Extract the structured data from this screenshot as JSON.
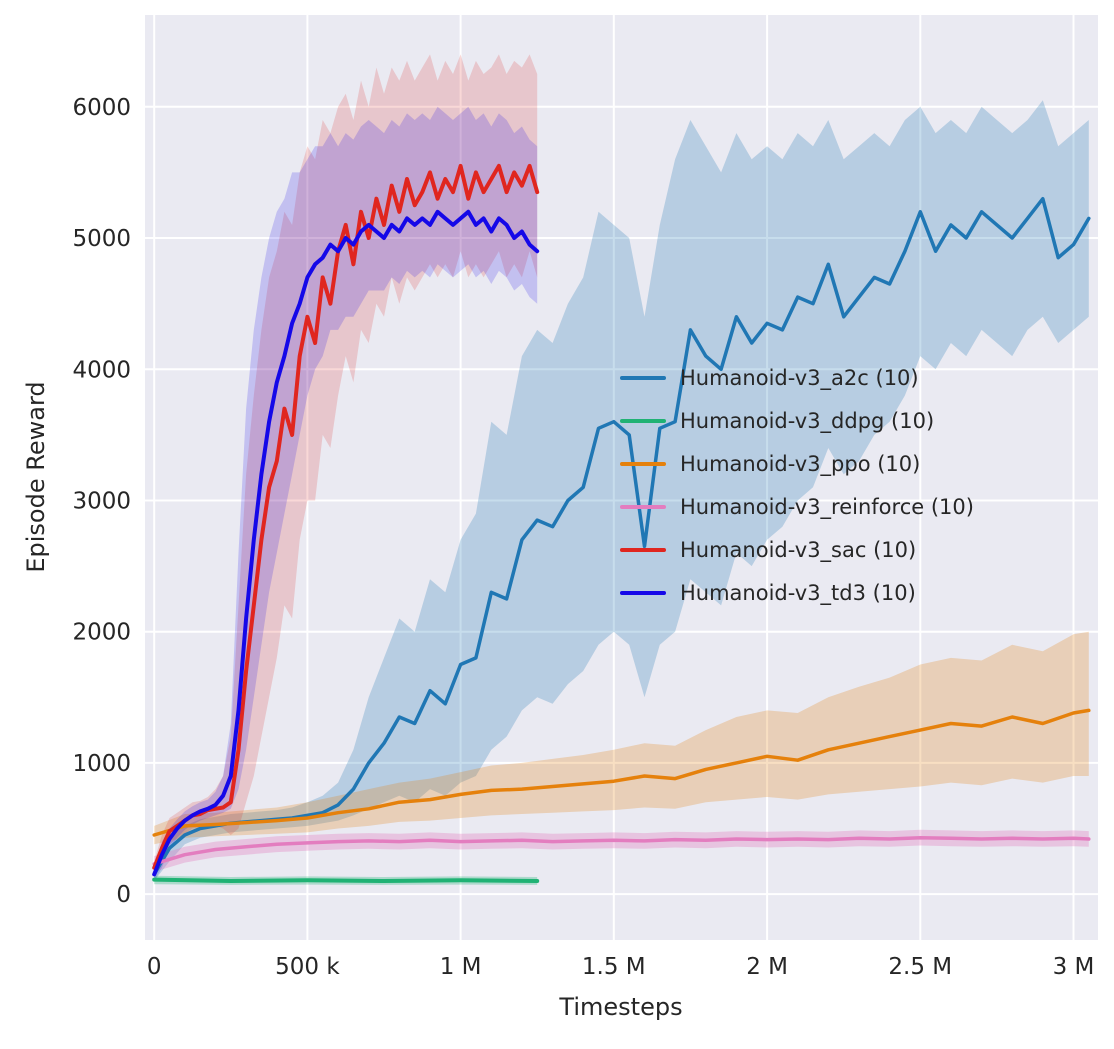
{
  "chart_data": {
    "type": "line",
    "title": "",
    "xlabel": "Timesteps",
    "ylabel": "Episode Reward",
    "x_unit_note": "x values below are in thousands of timesteps (k)",
    "xlim": [
      -30,
      3080
    ],
    "ylim": [
      -350,
      6700
    ],
    "grid": true,
    "legend_position": "center-right",
    "style": {
      "plot_bg": "#eaeaf2",
      "grid_color": "#ffffff",
      "text_color": "#262626"
    },
    "x_ticks": {
      "values": [
        0,
        500,
        1000,
        1500,
        2000,
        2500,
        3000
      ],
      "labels": [
        "0",
        "500 k",
        "1 M",
        "1.5 M",
        "2 M",
        "2.5 M",
        "3 M"
      ]
    },
    "y_ticks": {
      "values": [
        0,
        1000,
        2000,
        3000,
        4000,
        5000,
        6000
      ],
      "labels": [
        "0",
        "1000",
        "2000",
        "3000",
        "4000",
        "5000",
        "6000"
      ]
    },
    "series": [
      {
        "name": "a2c",
        "label": "Humanoid-v3_a2c (10)",
        "color": "#2077b4",
        "band_opacity": 0.25,
        "line_width": 3.5,
        "x": [
          0,
          50,
          100,
          150,
          200,
          250,
          300,
          350,
          400,
          450,
          500,
          550,
          600,
          650,
          700,
          750,
          800,
          850,
          900,
          950,
          1000,
          1050,
          1100,
          1150,
          1200,
          1250,
          1300,
          1350,
          1400,
          1450,
          1500,
          1550,
          1600,
          1650,
          1700,
          1750,
          1800,
          1850,
          1900,
          1950,
          2000,
          2050,
          2100,
          2150,
          2200,
          2250,
          2300,
          2350,
          2400,
          2450,
          2500,
          2550,
          2600,
          2650,
          2700,
          2750,
          2800,
          2850,
          2900,
          2950,
          3000,
          3050
        ],
        "mean": [
          150,
          350,
          450,
          500,
          520,
          540,
          550,
          560,
          570,
          580,
          600,
          620,
          680,
          800,
          1000,
          1150,
          1350,
          1300,
          1550,
          1450,
          1750,
          1800,
          2300,
          2250,
          2700,
          2850,
          2800,
          3000,
          3100,
          3550,
          3600,
          3500,
          2650,
          3550,
          3600,
          4300,
          4100,
          4000,
          4400,
          4200,
          4350,
          4300,
          4550,
          4500,
          4800,
          4400,
          4550,
          4700,
          4650,
          4900,
          5200,
          4900,
          5100,
          5000,
          5200,
          5100,
          5000,
          5150,
          5300,
          4850,
          4950,
          5150
        ],
        "lo": [
          100,
          250,
          380,
          430,
          450,
          470,
          480,
          490,
          500,
          510,
          520,
          540,
          560,
          600,
          650,
          700,
          750,
          700,
          800,
          750,
          850,
          900,
          1100,
          1200,
          1400,
          1500,
          1450,
          1600,
          1700,
          1900,
          2000,
          1900,
          1500,
          1900,
          2000,
          2400,
          2300,
          2200,
          2600,
          2500,
          2700,
          2800,
          3000,
          3100,
          3400,
          3200,
          3300,
          3500,
          3600,
          3800,
          4100,
          4000,
          4200,
          4100,
          4300,
          4200,
          4100,
          4300,
          4400,
          4200,
          4300,
          4400
        ],
        "hi": [
          200,
          450,
          520,
          570,
          590,
          610,
          620,
          630,
          640,
          660,
          700,
          750,
          850,
          1100,
          1500,
          1800,
          2100,
          2000,
          2400,
          2300,
          2700,
          2900,
          3600,
          3500,
          4100,
          4300,
          4200,
          4500,
          4700,
          5200,
          5100,
          5000,
          4400,
          5100,
          5600,
          5900,
          5700,
          5500,
          5800,
          5600,
          5700,
          5600,
          5800,
          5700,
          5900,
          5600,
          5700,
          5800,
          5700,
          5900,
          6000,
          5800,
          5900,
          5800,
          6000,
          5900,
          5800,
          5900,
          6050,
          5700,
          5800,
          5900
        ]
      },
      {
        "name": "ddpg",
        "label": "Humanoid-v3_ddpg (10)",
        "color": "#20b274",
        "band_opacity": 0.3,
        "line_width": 4,
        "x": [
          0,
          250,
          500,
          750,
          1000,
          1250
        ],
        "mean": [
          110,
          100,
          105,
          100,
          105,
          100
        ],
        "lo": [
          75,
          70,
          72,
          70,
          72,
          70
        ],
        "hi": [
          140,
          130,
          135,
          130,
          135,
          130
        ]
      },
      {
        "name": "ppo",
        "label": "Humanoid-v3_ppo (10)",
        "color": "#e5810c",
        "band_opacity": 0.25,
        "line_width": 3.5,
        "x": [
          0,
          100,
          200,
          300,
          400,
          500,
          600,
          700,
          800,
          900,
          1000,
          1100,
          1200,
          1300,
          1400,
          1500,
          1600,
          1700,
          1800,
          1900,
          2000,
          2100,
          2200,
          2300,
          2400,
          2500,
          2600,
          2700,
          2800,
          2900,
          3000,
          3050
        ],
        "mean": [
          450,
          520,
          530,
          545,
          560,
          580,
          620,
          650,
          700,
          720,
          760,
          790,
          800,
          820,
          840,
          860,
          900,
          880,
          950,
          1000,
          1050,
          1020,
          1100,
          1150,
          1200,
          1250,
          1300,
          1280,
          1350,
          1300,
          1380,
          1400
        ],
        "lo": [
          380,
          430,
          440,
          450,
          460,
          470,
          500,
          520,
          550,
          560,
          580,
          600,
          610,
          620,
          630,
          640,
          660,
          650,
          700,
          720,
          740,
          720,
          760,
          780,
          800,
          820,
          850,
          830,
          880,
          850,
          900,
          900
        ],
        "hi": [
          520,
          610,
          620,
          640,
          660,
          700,
          750,
          800,
          850,
          880,
          930,
          980,
          1000,
          1030,
          1060,
          1100,
          1150,
          1130,
          1250,
          1350,
          1400,
          1380,
          1500,
          1580,
          1650,
          1750,
          1800,
          1780,
          1900,
          1850,
          1980,
          2000
        ]
      },
      {
        "name": "reinforce",
        "label": "Humanoid-v3_reinforce (10)",
        "color": "#e37dbf",
        "band_opacity": 0.35,
        "line_width": 3.5,
        "x": [
          0,
          100,
          200,
          300,
          400,
          500,
          600,
          700,
          800,
          900,
          1000,
          1100,
          1200,
          1300,
          1400,
          1500,
          1600,
          1700,
          1800,
          1900,
          2000,
          2100,
          2200,
          2300,
          2400,
          2500,
          2600,
          2700,
          2800,
          2900,
          3000,
          3050
        ],
        "mean": [
          230,
          300,
          340,
          360,
          380,
          390,
          400,
          405,
          400,
          410,
          400,
          405,
          410,
          400,
          405,
          410,
          405,
          415,
          410,
          420,
          415,
          420,
          415,
          425,
          420,
          430,
          425,
          420,
          425,
          420,
          425,
          420
        ],
        "lo": [
          170,
          240,
          280,
          300,
          320,
          330,
          340,
          345,
          340,
          350,
          340,
          345,
          350,
          340,
          345,
          350,
          345,
          355,
          350,
          360,
          355,
          360,
          355,
          365,
          360,
          370,
          365,
          360,
          365,
          360,
          365,
          360
        ],
        "hi": [
          290,
          360,
          400,
          420,
          440,
          450,
          460,
          465,
          460,
          470,
          460,
          465,
          470,
          460,
          465,
          470,
          465,
          475,
          470,
          480,
          475,
          480,
          475,
          485,
          480,
          490,
          485,
          480,
          485,
          480,
          485,
          480
        ]
      },
      {
        "name": "sac",
        "label": "Humanoid-v3_sac (10)",
        "color": "#e0261f",
        "band_opacity": 0.18,
        "line_width": 4,
        "x": [
          0,
          25,
          50,
          75,
          100,
          125,
          150,
          175,
          200,
          225,
          250,
          275,
          300,
          325,
          350,
          375,
          400,
          425,
          450,
          475,
          500,
          525,
          550,
          575,
          600,
          625,
          650,
          675,
          700,
          725,
          750,
          775,
          800,
          825,
          850,
          875,
          900,
          925,
          950,
          975,
          1000,
          1025,
          1050,
          1075,
          1100,
          1125,
          1150,
          1175,
          1200,
          1225,
          1250
        ],
        "mean": [
          200,
          350,
          480,
          520,
          560,
          600,
          610,
          640,
          650,
          660,
          700,
          1100,
          1700,
          2200,
          2700,
          3100,
          3300,
          3700,
          3500,
          4100,
          4400,
          4200,
          4700,
          4500,
          4900,
          5100,
          4800,
          5200,
          5000,
          5300,
          5100,
          5400,
          5200,
          5450,
          5250,
          5350,
          5500,
          5300,
          5450,
          5350,
          5550,
          5300,
          5500,
          5350,
          5450,
          5550,
          5350,
          5500,
          5400,
          5550,
          5350
        ],
        "lo": [
          150,
          250,
          380,
          420,
          460,
          500,
          510,
          540,
          520,
          500,
          450,
          500,
          700,
          900,
          1200,
          1500,
          1800,
          2200,
          2100,
          2700,
          3000,
          3000,
          3500,
          3400,
          3800,
          4100,
          3900,
          4300,
          4200,
          4500,
          4400,
          4700,
          4500,
          4700,
          4600,
          4700,
          4800,
          4700,
          4800,
          4700,
          4900,
          4700,
          4800,
          4700,
          4800,
          4900,
          4700,
          4800,
          4700,
          4900,
          4700
        ],
        "hi": [
          250,
          450,
          580,
          620,
          660,
          700,
          710,
          740,
          800,
          900,
          1200,
          2200,
          3200,
          3800,
          4300,
          4700,
          4900,
          5200,
          5100,
          5500,
          5700,
          5600,
          5900,
          5800,
          6000,
          6100,
          5900,
          6200,
          6000,
          6300,
          6100,
          6300,
          6200,
          6350,
          6200,
          6300,
          6400,
          6200,
          6350,
          6250,
          6400,
          6200,
          6350,
          6250,
          6300,
          6400,
          6250,
          6350,
          6300,
          6400,
          6250
        ]
      },
      {
        "name": "td3",
        "label": "Humanoid-v3_td3 (10)",
        "color": "#1508e8",
        "band_opacity": 0.18,
        "line_width": 4,
        "x": [
          0,
          25,
          50,
          75,
          100,
          125,
          150,
          175,
          200,
          225,
          250,
          275,
          300,
          325,
          350,
          375,
          400,
          425,
          450,
          475,
          500,
          525,
          550,
          575,
          600,
          625,
          650,
          675,
          700,
          725,
          750,
          775,
          800,
          825,
          850,
          875,
          900,
          925,
          950,
          975,
          1000,
          1025,
          1050,
          1075,
          1100,
          1125,
          1150,
          1175,
          1200,
          1225,
          1250
        ],
        "mean": [
          150,
          300,
          420,
          500,
          560,
          600,
          630,
          650,
          680,
          750,
          900,
          1400,
          2100,
          2700,
          3200,
          3600,
          3900,
          4100,
          4350,
          4500,
          4700,
          4800,
          4850,
          4950,
          4900,
          5000,
          4950,
          5050,
          5100,
          5050,
          5000,
          5100,
          5050,
          5150,
          5100,
          5150,
          5100,
          5200,
          5150,
          5100,
          5150,
          5200,
          5100,
          5150,
          5050,
          5150,
          5100,
          5000,
          5050,
          4950,
          4900
        ],
        "lo": [
          100,
          200,
          350,
          430,
          490,
          530,
          560,
          580,
          600,
          620,
          650,
          800,
          1100,
          1500,
          1900,
          2300,
          2600,
          2900,
          3200,
          3500,
          3800,
          4000,
          4100,
          4300,
          4300,
          4400,
          4400,
          4500,
          4600,
          4600,
          4600,
          4700,
          4650,
          4750,
          4700,
          4750,
          4700,
          4800,
          4750,
          4700,
          4750,
          4800,
          4700,
          4750,
          4650,
          4750,
          4700,
          4600,
          4650,
          4550,
          4500
        ],
        "hi": [
          200,
          400,
          500,
          570,
          630,
          670,
          700,
          720,
          780,
          900,
          1300,
          2600,
          3700,
          4300,
          4700,
          5000,
          5200,
          5300,
          5500,
          5500,
          5600,
          5700,
          5700,
          5800,
          5700,
          5800,
          5750,
          5850,
          5900,
          5850,
          5800,
          5900,
          5850,
          5950,
          5900,
          5950,
          5900,
          6000,
          5950,
          5900,
          5950,
          6000,
          5900,
          5950,
          5850,
          5950,
          5900,
          5800,
          5850,
          5750,
          5700
        ]
      }
    ]
  }
}
